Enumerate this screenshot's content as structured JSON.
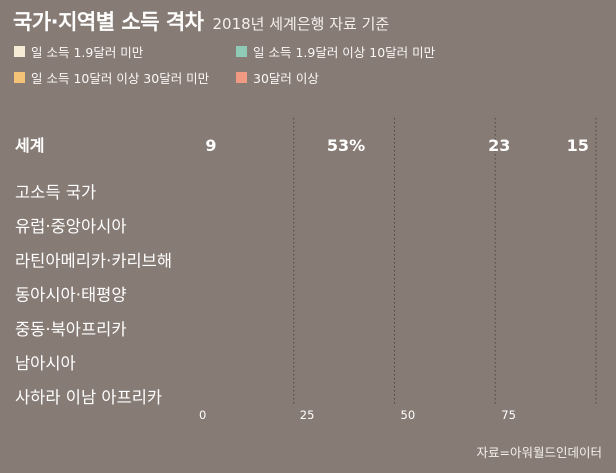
{
  "header": {
    "title": "국가·지역별 소득 격차",
    "subtitle": "2018년 세계은행 자료 기준"
  },
  "legend": [
    {
      "label": "일 소득 1.9달러 미만",
      "color": "#f6ecd6"
    },
    {
      "label": "일 소득 1.9달러 이상 10달러 미만",
      "color": "#8fcab6"
    },
    {
      "label": "일 소득 10달러 이상 30달러 미만",
      "color": "#f5c378"
    },
    {
      "label": "30달러 이상",
      "color": "#f09a83"
    }
  ],
  "source": "자료=아워월드인데이터",
  "chart_data": {
    "type": "bar",
    "stacked": true,
    "orientation": "horizontal",
    "xlim": [
      0,
      100
    ],
    "xticks": [
      "0",
      "25",
      "50",
      "75"
    ],
    "categories": [
      "세계",
      "고소득 국가",
      "유럽·중앙아시아",
      "라틴아메리카·카리브해",
      "동아시아·태평양",
      "중동·북아프리카",
      "남아시아",
      "사하라 이남 아프리카"
    ],
    "highlight_category": "세계",
    "series": [
      {
        "name": "일 소득 1.9달러 미만",
        "values": [
          9,
          null,
          null,
          null,
          null,
          null,
          null,
          null
        ]
      },
      {
        "name": "일 소득 1.9달러 이상 10달러 미만",
        "values": [
          53,
          null,
          null,
          null,
          null,
          null,
          null,
          null
        ]
      },
      {
        "name": "일 소득 10달러 이상 30달러 미만",
        "values": [
          23,
          null,
          null,
          null,
          null,
          null,
          null,
          null
        ]
      },
      {
        "name": "30달러 이상",
        "values": [
          15,
          null,
          null,
          null,
          null,
          null,
          null,
          null
        ]
      }
    ],
    "value_labels": [
      "9",
      "53%",
      "23",
      "15"
    ],
    "grid": true
  }
}
